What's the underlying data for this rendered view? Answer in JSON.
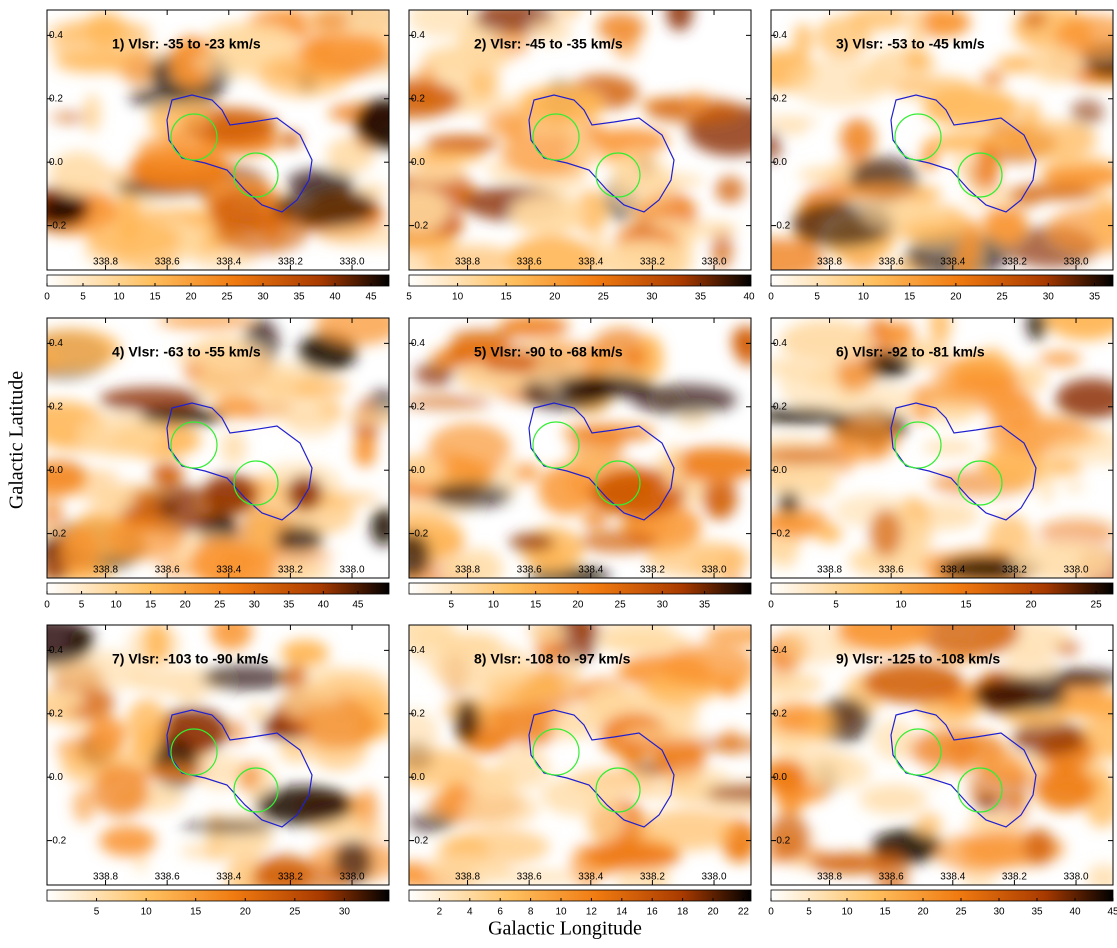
{
  "xlabel": "Galactic Longitude",
  "ylabel": "Galactic Latitude",
  "chart_data": [
    {
      "type": "heatmap",
      "title": "1) Vlsr: -35 to -23 km/s",
      "xlim": [
        338.99,
        337.88
      ],
      "ylim": [
        -0.34,
        0.48
      ],
      "xticks": [
        338.8,
        338.6,
        338.4,
        338.2,
        {
          "value": 338,
          "label": "338.0"
        }
      ],
      "yticks": [
        -0.2,
        {
          "value": 0,
          "label": "0.0"
        },
        0.2,
        0.4
      ],
      "colorbar": {
        "lim": [
          0,
          47.5
        ],
        "ticks": [
          0,
          5,
          10,
          15,
          20,
          25,
          30,
          35,
          40,
          45
        ]
      }
    },
    {
      "type": "heatmap",
      "title": "2) Vlsr: -45 to -35 km/s",
      "xlim": [
        338.99,
        337.88
      ],
      "ylim": [
        -0.34,
        0.48
      ],
      "xticks": [
        338.8,
        338.6,
        338.4,
        338.2,
        {
          "value": 338,
          "label": "338.0"
        }
      ],
      "yticks": [
        -0.2,
        {
          "value": 0,
          "label": "0.0"
        },
        0.2,
        0.4
      ],
      "colorbar": {
        "lim": [
          5,
          40.2
        ],
        "ticks": [
          5,
          10,
          15,
          20,
          25,
          30,
          35,
          40
        ]
      }
    },
    {
      "type": "heatmap",
      "title": "3) Vlsr: -53 to -45 km/s",
      "xlim": [
        338.99,
        337.88
      ],
      "ylim": [
        -0.34,
        0.48
      ],
      "xticks": [
        338.8,
        338.6,
        338.4,
        338.2,
        {
          "value": 338,
          "label": "338.0"
        }
      ],
      "yticks": [
        -0.2,
        {
          "value": 0,
          "label": "0.0"
        },
        0.2,
        0.4
      ],
      "colorbar": {
        "lim": [
          0,
          37
        ],
        "ticks": [
          0,
          5,
          10,
          15,
          20,
          25,
          30,
          35
        ]
      }
    },
    {
      "type": "heatmap",
      "title": "4) Vlsr: -63 to -55 km/s",
      "xlim": [
        338.99,
        337.88
      ],
      "ylim": [
        -0.34,
        0.48
      ],
      "xticks": [
        338.8,
        338.6,
        338.4,
        338.2,
        {
          "value": 338,
          "label": "338.0"
        }
      ],
      "yticks": [
        -0.2,
        {
          "value": 0,
          "label": "0.0"
        },
        0.2,
        0.4
      ],
      "colorbar": {
        "lim": [
          0,
          49.5
        ],
        "ticks": [
          0,
          5,
          10,
          15,
          20,
          25,
          30,
          35,
          40,
          45
        ]
      }
    },
    {
      "type": "heatmap",
      "title": "5) Vlsr: -90 to -68 km/s",
      "xlim": [
        338.99,
        337.88
      ],
      "ylim": [
        -0.34,
        0.48
      ],
      "xticks": [
        338.8,
        338.6,
        338.4,
        338.2,
        {
          "value": 338,
          "label": "338.0"
        }
      ],
      "yticks": [
        -0.2,
        {
          "value": 0,
          "label": "0.0"
        },
        0.2,
        0.4
      ],
      "colorbar": {
        "lim": [
          0,
          40.5
        ],
        "ticks": [
          5,
          10,
          15,
          20,
          25,
          30,
          35
        ]
      }
    },
    {
      "type": "heatmap",
      "title": "6) Vlsr: -92 to -81 km/s",
      "xlim": [
        338.99,
        337.88
      ],
      "ylim": [
        -0.34,
        0.48
      ],
      "xticks": [
        338.8,
        338.6,
        338.4,
        338.2,
        {
          "value": 338,
          "label": "338.0"
        }
      ],
      "yticks": [
        -0.2,
        {
          "value": 0,
          "label": "0.0"
        },
        0.2,
        0.4
      ],
      "colorbar": {
        "lim": [
          0,
          26.3
        ],
        "ticks": [
          0,
          5,
          10,
          15,
          20,
          25
        ]
      }
    },
    {
      "type": "heatmap",
      "title": "7) Vlsr: -103 to -90 km/s",
      "xlim": [
        338.99,
        337.88
      ],
      "ylim": [
        -0.34,
        0.48
      ],
      "xticks": [
        338.8,
        338.6,
        338.4,
        338.2,
        {
          "value": 338,
          "label": "338.0"
        }
      ],
      "yticks": [
        -0.2,
        {
          "value": 0,
          "label": "0.0"
        },
        0.2,
        0.4
      ],
      "colorbar": {
        "lim": [
          0,
          34.5
        ],
        "ticks": [
          5,
          10,
          15,
          20,
          25,
          30
        ]
      }
    },
    {
      "type": "heatmap",
      "title": "8) Vlsr: -108 to -97 km/s",
      "xlim": [
        338.99,
        337.88
      ],
      "ylim": [
        -0.34,
        0.48
      ],
      "xticks": [
        338.8,
        338.6,
        338.4,
        338.2,
        {
          "value": 338,
          "label": "338.0"
        }
      ],
      "yticks": [
        -0.2,
        {
          "value": 0,
          "label": "0.0"
        },
        0.2,
        0.4
      ],
      "colorbar": {
        "lim": [
          0,
          22.5
        ],
        "ticks": [
          2,
          4,
          6,
          8,
          10,
          12,
          14,
          16,
          18,
          20,
          22
        ]
      }
    },
    {
      "type": "heatmap",
      "title": "9) Vlsr: -125 to -108 km/s",
      "xlim": [
        338.99,
        337.88
      ],
      "ylim": [
        -0.34,
        0.48
      ],
      "xticks": [
        338.8,
        338.6,
        338.4,
        338.2,
        {
          "value": 338,
          "label": "338.0"
        }
      ],
      "yticks": [
        -0.2,
        {
          "value": 0,
          "label": "0.0"
        },
        0.2,
        0.4
      ],
      "colorbar": {
        "lim": [
          0,
          45
        ],
        "ticks": [
          0,
          5,
          10,
          15,
          20,
          25,
          30,
          35,
          40,
          45
        ]
      }
    }
  ]
}
